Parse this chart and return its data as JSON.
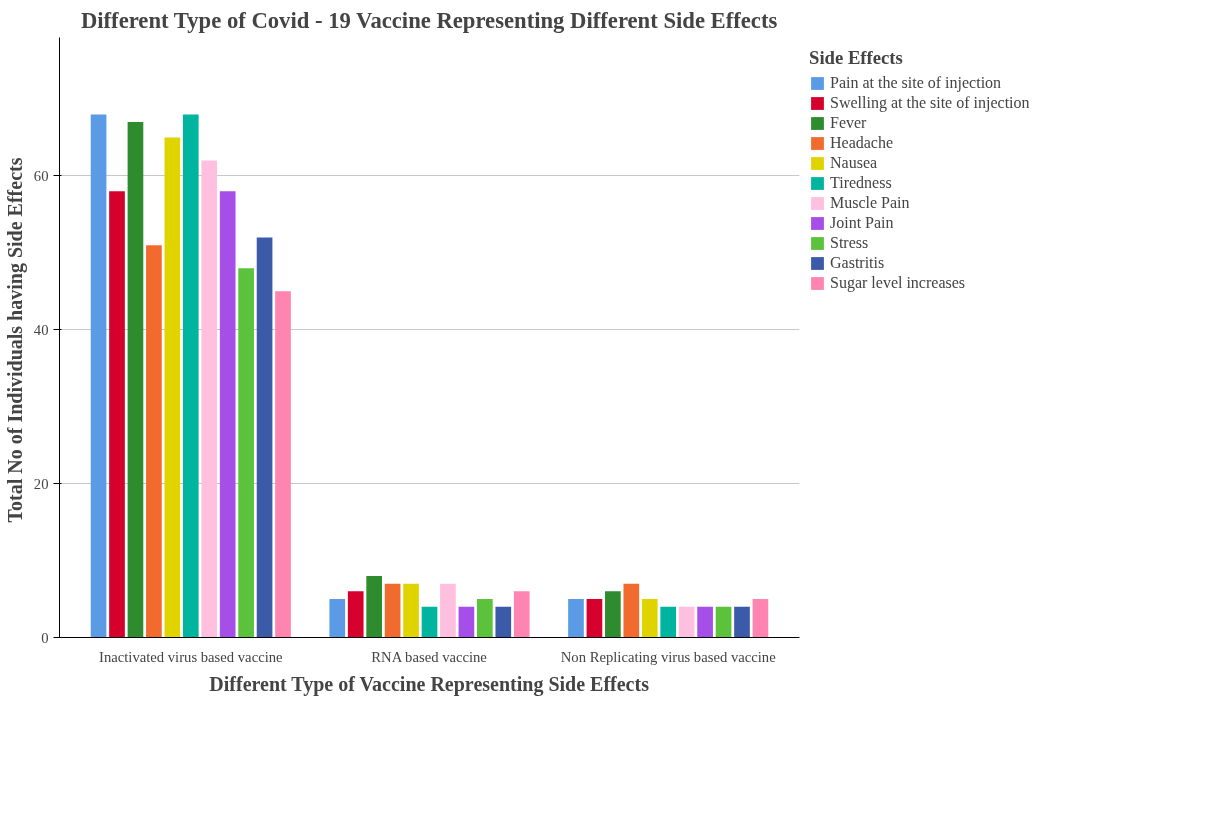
{
  "chart_data": {
    "type": "bar",
    "title": "Different Type of Covid - 19 Vaccine Representing Different Side Effects",
    "xlabel": "Different Type of Vaccine Representing Side Effects",
    "ylabel": "Total No of Individuals having Side  Effects",
    "legend_title": "Side Effects",
    "categories": [
      "Inactivated virus based vaccine",
      "RNA based vaccine",
      "Non Replicating virus based vaccine"
    ],
    "series": [
      {
        "name": "Pain at the site of injection",
        "color": "#5b9be6",
        "values": [
          68,
          5,
          5
        ]
      },
      {
        "name": "Swelling at the site of injection",
        "color": "#d5002c",
        "values": [
          58,
          6,
          5
        ]
      },
      {
        "name": "Fever",
        "color": "#2e8b2e",
        "values": [
          67,
          8,
          6
        ]
      },
      {
        "name": "Headache",
        "color": "#f26b2e",
        "values": [
          51,
          7,
          7
        ]
      },
      {
        "name": "Nausea",
        "color": "#e0d400",
        "values": [
          65,
          7,
          5
        ]
      },
      {
        "name": "Tiredness",
        "color": "#00b5a0",
        "values": [
          68,
          4,
          4
        ]
      },
      {
        "name": "Muscle Pain",
        "color": "#ffc0e0",
        "values": [
          62,
          7,
          4
        ]
      },
      {
        "name": "Joint Pain",
        "color": "#a64ee8",
        "values": [
          58,
          4,
          4
        ]
      },
      {
        "name": "Stress",
        "color": "#5cc23c",
        "values": [
          48,
          5,
          4
        ]
      },
      {
        "name": "Gastritis",
        "color": "#3b5aa8",
        "values": [
          52,
          4,
          4
        ]
      },
      {
        "name": "Sugar level increases",
        "color": "#ff85b0",
        "values": [
          45,
          6,
          5
        ]
      }
    ],
    "ylim": [
      0,
      78
    ],
    "yticks": [
      0,
      20,
      40,
      60
    ],
    "grid": "y",
    "legend": "right"
  }
}
